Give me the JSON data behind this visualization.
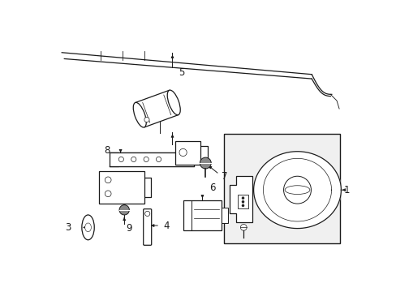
{
  "bg_color": "#ffffff",
  "line_color": "#1a1a1a",
  "gray_fill": "#888888",
  "box_bg": "#f0f0f0",
  "fig_width": 4.89,
  "fig_height": 3.6
}
